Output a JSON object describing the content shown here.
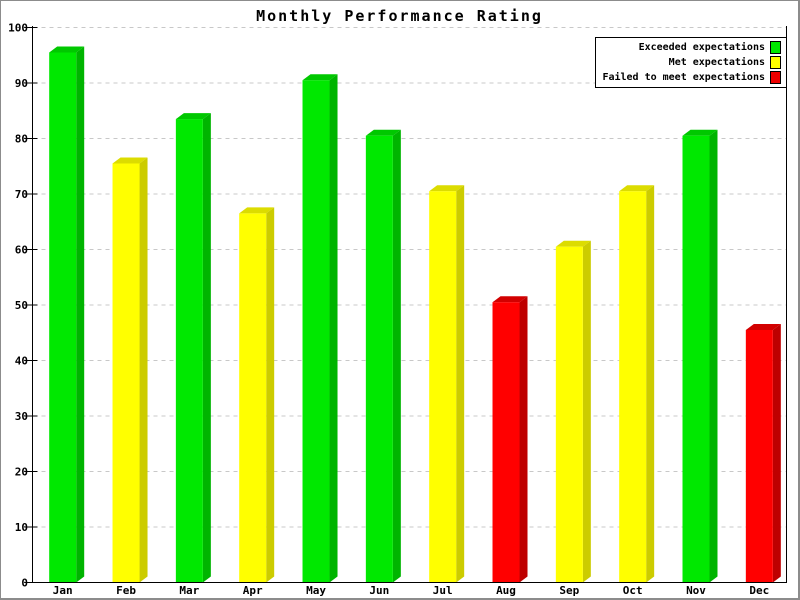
{
  "chart_data": {
    "type": "bar",
    "title": "Monthly Performance Rating",
    "categories": [
      "Jan",
      "Feb",
      "Mar",
      "Apr",
      "May",
      "Jun",
      "Jul",
      "Aug",
      "Sep",
      "Oct",
      "Nov",
      "Dec"
    ],
    "values": [
      95.5,
      75.5,
      83.5,
      66.5,
      90.5,
      80.5,
      70.5,
      50.5,
      60.5,
      70.5,
      80.5,
      45.5
    ],
    "ratings": [
      "exceeded",
      "met",
      "exceeded",
      "met",
      "exceeded",
      "exceeded",
      "met",
      "failed",
      "met",
      "met",
      "exceeded",
      "failed"
    ],
    "xlabel": "",
    "ylabel": "",
    "ylim": [
      0,
      100
    ],
    "ytick_step": 10,
    "ytick_labels": [
      "0",
      "10",
      "20",
      "30",
      "40",
      "50",
      "60",
      "70",
      "80",
      "90",
      "100"
    ],
    "grid": "horizontal-dashed",
    "style": "3d-bars",
    "legend": {
      "position": "top-right",
      "entries": [
        {
          "label": "Exceeded expectations",
          "rating": "exceeded",
          "color": "#00E800"
        },
        {
          "label": "Met expectations",
          "rating": "met",
          "color": "#FFFF00"
        },
        {
          "label": "Failed to meet expectations",
          "rating": "failed",
          "color": "#EE0000"
        }
      ]
    },
    "colors": {
      "exceeded": {
        "front": "#00E800",
        "side": "#00B400",
        "top": "#00C800"
      },
      "met": {
        "front": "#FFFF00",
        "side": "#CCCC00",
        "top": "#DCDC00"
      },
      "failed": {
        "front": "#FF0000",
        "side": "#BE0000",
        "top": "#D20000"
      },
      "gridline": "#C8C8C8",
      "axis": "#000000",
      "background": "#FFFFFF",
      "text": "#000000"
    }
  }
}
